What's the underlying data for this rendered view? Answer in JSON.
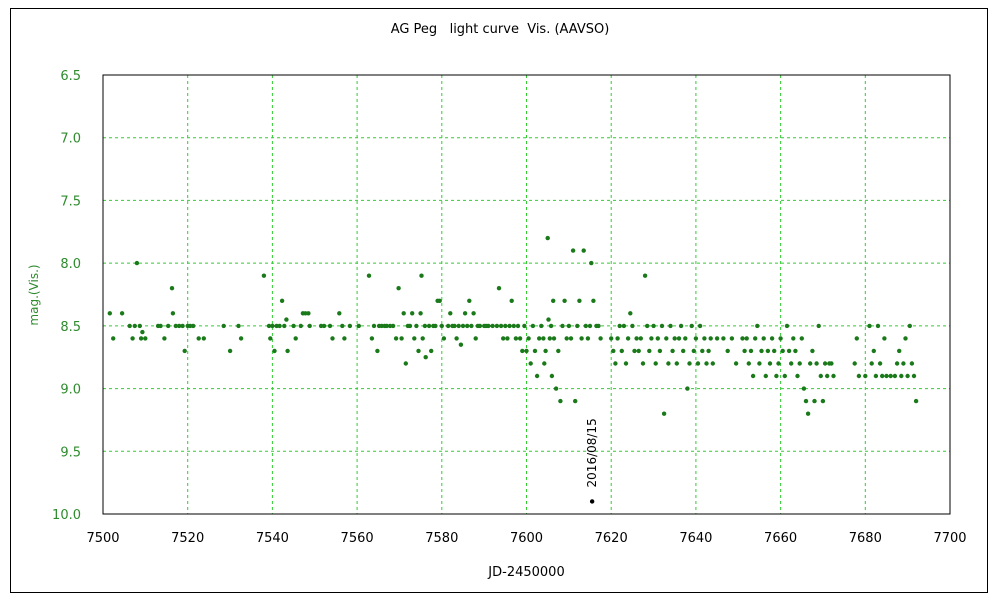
{
  "chart_data": {
    "type": "scatter",
    "title": "AG Peg   light curve  Vis. (AAVSO)",
    "xlabel": "JD-2450000",
    "ylabel": "mag.(Vis.)",
    "xlim": [
      7500,
      7700
    ],
    "ylim": [
      10.0,
      6.5
    ],
    "y_inverted": true,
    "xticks": [
      "7500",
      "7520",
      "7540",
      "7560",
      "7580",
      "7600",
      "7620",
      "7640",
      "7660",
      "7680",
      "7700"
    ],
    "yticks": [
      "6.5",
      "7.0",
      "7.5",
      "8.0",
      "8.5",
      "9.0",
      "9.5",
      "10.0"
    ],
    "grid": true,
    "grid_color": "#33cc33",
    "point_color": "#1a7a1a",
    "tick_color": "#2e8b2e",
    "annotation": {
      "text": "2016/08/15",
      "x": 7615.5,
      "y": 9.9,
      "color": "#000000"
    },
    "series": [
      {
        "points": [
          [
            7501.6,
            8.4
          ],
          [
            7502.4,
            8.6
          ],
          [
            7504.5,
            8.4
          ],
          [
            7506.3,
            8.5
          ],
          [
            7507.0,
            8.6
          ],
          [
            7507.5,
            8.5
          ],
          [
            7508.0,
            8.0
          ],
          [
            7508.7,
            8.5
          ],
          [
            7509.0,
            8.6
          ],
          [
            7509.3,
            8.55
          ],
          [
            7510.0,
            8.6
          ],
          [
            7513.0,
            8.5
          ],
          [
            7513.6,
            8.5
          ],
          [
            7514.5,
            8.6
          ],
          [
            7515.4,
            8.5
          ],
          [
            7516.3,
            8.2
          ],
          [
            7516.5,
            8.4
          ],
          [
            7517.2,
            8.5
          ],
          [
            7518.0,
            8.5
          ],
          [
            7518.8,
            8.5
          ],
          [
            7519.3,
            8.7
          ],
          [
            7520.0,
            8.5
          ],
          [
            7520.6,
            8.5
          ],
          [
            7521.3,
            8.5
          ],
          [
            7522.6,
            8.6
          ],
          [
            7523.8,
            8.6
          ],
          [
            7528.5,
            8.5
          ],
          [
            7530.0,
            8.7
          ],
          [
            7532.0,
            8.5
          ],
          [
            7532.6,
            8.6
          ],
          [
            7538.0,
            8.1
          ],
          [
            7539.2,
            8.5
          ],
          [
            7539.5,
            8.6
          ],
          [
            7540.0,
            8.5
          ],
          [
            7540.5,
            8.7
          ],
          [
            7541.0,
            8.5
          ],
          [
            7541.7,
            8.5
          ],
          [
            7542.3,
            8.3
          ],
          [
            7542.8,
            8.5
          ],
          [
            7543.3,
            8.45
          ],
          [
            7543.6,
            8.7
          ],
          [
            7545.0,
            8.5
          ],
          [
            7545.5,
            8.6
          ],
          [
            7546.7,
            8.5
          ],
          [
            7547.2,
            8.4
          ],
          [
            7547.8,
            8.4
          ],
          [
            7548.5,
            8.4
          ],
          [
            7548.8,
            8.5
          ],
          [
            7551.5,
            8.5
          ],
          [
            7552.2,
            8.5
          ],
          [
            7553.6,
            8.5
          ],
          [
            7554.2,
            8.6
          ],
          [
            7555.8,
            8.4
          ],
          [
            7556.5,
            8.5
          ],
          [
            7557.0,
            8.6
          ],
          [
            7558.3,
            8.5
          ],
          [
            7560.4,
            8.5
          ],
          [
            7562.8,
            8.1
          ],
          [
            7563.5,
            8.6
          ],
          [
            7564.0,
            8.5
          ],
          [
            7564.8,
            8.7
          ],
          [
            7565.2,
            8.5
          ],
          [
            7565.8,
            8.5
          ],
          [
            7566.5,
            8.5
          ],
          [
            7567.0,
            8.5
          ],
          [
            7567.8,
            8.5
          ],
          [
            7568.5,
            8.5
          ],
          [
            7569.2,
            8.6
          ],
          [
            7569.8,
            8.2
          ],
          [
            7570.5,
            8.6
          ],
          [
            7571.0,
            8.4
          ],
          [
            7571.5,
            8.8
          ],
          [
            7572.0,
            8.5
          ],
          [
            7572.5,
            8.5
          ],
          [
            7573.0,
            8.4
          ],
          [
            7573.5,
            8.6
          ],
          [
            7574.0,
            8.5
          ],
          [
            7574.5,
            8.7
          ],
          [
            7575.0,
            8.4
          ],
          [
            7575.2,
            8.1
          ],
          [
            7575.5,
            8.6
          ],
          [
            7576.0,
            8.5
          ],
          [
            7576.2,
            8.75
          ],
          [
            7577.0,
            8.5
          ],
          [
            7577.5,
            8.7
          ],
          [
            7578.0,
            8.5
          ],
          [
            7578.5,
            8.5
          ],
          [
            7579.0,
            8.3
          ],
          [
            7579.5,
            8.3
          ],
          [
            7580.0,
            8.5
          ],
          [
            7580.5,
            8.6
          ],
          [
            7581.5,
            8.5
          ],
          [
            7582.0,
            8.4
          ],
          [
            7582.5,
            8.5
          ],
          [
            7583.0,
            8.5
          ],
          [
            7583.5,
            8.6
          ],
          [
            7584.0,
            8.5
          ],
          [
            7584.5,
            8.65
          ],
          [
            7585.0,
            8.5
          ],
          [
            7585.5,
            8.4
          ],
          [
            7586.0,
            8.5
          ],
          [
            7586.5,
            8.3
          ],
          [
            7587.0,
            8.5
          ],
          [
            7587.5,
            8.4
          ],
          [
            7588.0,
            8.6
          ],
          [
            7588.5,
            8.5
          ],
          [
            7589.0,
            8.5
          ],
          [
            7590.0,
            8.5
          ],
          [
            7590.5,
            8.5
          ],
          [
            7591.0,
            8.5
          ],
          [
            7592.0,
            8.5
          ],
          [
            7593.0,
            8.5
          ],
          [
            7593.5,
            8.2
          ],
          [
            7594.0,
            8.5
          ],
          [
            7594.5,
            8.6
          ],
          [
            7595.0,
            8.5
          ],
          [
            7595.5,
            8.6
          ],
          [
            7596.0,
            8.5
          ],
          [
            7596.5,
            8.3
          ],
          [
            7597.0,
            8.5
          ],
          [
            7597.5,
            8.6
          ],
          [
            7598.0,
            8.5
          ],
          [
            7598.5,
            8.6
          ],
          [
            7599.0,
            8.7
          ],
          [
            7599.5,
            8.5
          ],
          [
            7600.0,
            8.7
          ],
          [
            7600.5,
            8.6
          ],
          [
            7601.0,
            8.8
          ],
          [
            7601.5,
            8.5
          ],
          [
            7602.0,
            8.7
          ],
          [
            7602.5,
            8.9
          ],
          [
            7603.0,
            8.6
          ],
          [
            7603.5,
            8.5
          ],
          [
            7604.0,
            8.6
          ],
          [
            7604.2,
            8.8
          ],
          [
            7604.5,
            8.7
          ],
          [
            7605.0,
            7.8
          ],
          [
            7605.2,
            8.45
          ],
          [
            7605.5,
            8.6
          ],
          [
            7605.8,
            8.5
          ],
          [
            7606.0,
            8.9
          ],
          [
            7606.3,
            8.3
          ],
          [
            7606.5,
            8.6
          ],
          [
            7607.0,
            9.0
          ],
          [
            7607.5,
            8.7
          ],
          [
            7608.0,
            9.1
          ],
          [
            7608.5,
            8.5
          ],
          [
            7609.0,
            8.3
          ],
          [
            7609.5,
            8.6
          ],
          [
            7610.0,
            8.5
          ],
          [
            7610.5,
            8.6
          ],
          [
            7611.0,
            7.9
          ],
          [
            7611.5,
            9.1
          ],
          [
            7612.0,
            8.5
          ],
          [
            7612.5,
            8.3
          ],
          [
            7613.0,
            8.6
          ],
          [
            7613.5,
            7.9
          ],
          [
            7614.0,
            8.5
          ],
          [
            7614.5,
            8.6
          ],
          [
            7615.0,
            8.5
          ],
          [
            7615.3,
            8.0
          ],
          [
            7615.8,
            8.3
          ],
          [
            7616.5,
            8.5
          ],
          [
            7617.0,
            8.5
          ],
          [
            7617.5,
            8.6
          ],
          [
            7620.0,
            8.6
          ],
          [
            7620.5,
            8.7
          ],
          [
            7621.0,
            8.8
          ],
          [
            7621.5,
            8.6
          ],
          [
            7622.0,
            8.5
          ],
          [
            7622.5,
            8.7
          ],
          [
            7623.0,
            8.5
          ],
          [
            7623.5,
            8.8
          ],
          [
            7624.0,
            8.6
          ],
          [
            7624.5,
            8.4
          ],
          [
            7625.0,
            8.5
          ],
          [
            7625.5,
            8.7
          ],
          [
            7626.0,
            8.6
          ],
          [
            7626.5,
            8.7
          ],
          [
            7627.0,
            8.6
          ],
          [
            7627.5,
            8.8
          ],
          [
            7628.0,
            8.1
          ],
          [
            7628.5,
            8.5
          ],
          [
            7629.0,
            8.7
          ],
          [
            7629.5,
            8.6
          ],
          [
            7630.0,
            8.5
          ],
          [
            7630.5,
            8.8
          ],
          [
            7631.0,
            8.6
          ],
          [
            7631.5,
            8.7
          ],
          [
            7632.0,
            8.5
          ],
          [
            7632.5,
            9.2
          ],
          [
            7633.0,
            8.6
          ],
          [
            7633.5,
            8.8
          ],
          [
            7634.0,
            8.5
          ],
          [
            7634.5,
            8.7
          ],
          [
            7635.0,
            8.6
          ],
          [
            7635.5,
            8.8
          ],
          [
            7636.0,
            8.6
          ],
          [
            7636.5,
            8.5
          ],
          [
            7637.0,
            8.7
          ],
          [
            7637.5,
            8.6
          ],
          [
            7638.0,
            9.0
          ],
          [
            7638.5,
            8.8
          ],
          [
            7639.0,
            8.5
          ],
          [
            7639.5,
            8.7
          ],
          [
            7640.0,
            8.6
          ],
          [
            7640.5,
            8.8
          ],
          [
            7641.0,
            8.5
          ],
          [
            7641.5,
            8.7
          ],
          [
            7642.0,
            8.6
          ],
          [
            7642.5,
            8.8
          ],
          [
            7643.0,
            8.7
          ],
          [
            7643.5,
            8.6
          ],
          [
            7644.0,
            8.8
          ],
          [
            7645.0,
            8.6
          ],
          [
            7646.5,
            8.6
          ],
          [
            7647.5,
            8.7
          ],
          [
            7648.5,
            8.6
          ],
          [
            7649.5,
            8.8
          ],
          [
            7651.0,
            8.6
          ],
          [
            7651.5,
            8.7
          ],
          [
            7652.0,
            8.6
          ],
          [
            7652.5,
            8.8
          ],
          [
            7653.0,
            8.7
          ],
          [
            7653.5,
            8.9
          ],
          [
            7654.0,
            8.6
          ],
          [
            7654.5,
            8.5
          ],
          [
            7655.0,
            8.8
          ],
          [
            7655.5,
            8.7
          ],
          [
            7656.0,
            8.6
          ],
          [
            7656.5,
            8.9
          ],
          [
            7657.0,
            8.7
          ],
          [
            7657.5,
            8.8
          ],
          [
            7658.0,
            8.6
          ],
          [
            7658.5,
            8.7
          ],
          [
            7659.0,
            8.9
          ],
          [
            7659.5,
            8.8
          ],
          [
            7660.0,
            8.6
          ],
          [
            7660.5,
            8.7
          ],
          [
            7661.0,
            8.9
          ],
          [
            7661.5,
            8.5
          ],
          [
            7662.0,
            8.7
          ],
          [
            7662.5,
            8.8
          ],
          [
            7663.0,
            8.6
          ],
          [
            7663.5,
            8.7
          ],
          [
            7664.0,
            8.9
          ],
          [
            7664.5,
            8.8
          ],
          [
            7665.0,
            8.6
          ],
          [
            7665.5,
            9.0
          ],
          [
            7666.0,
            9.1
          ],
          [
            7666.5,
            9.2
          ],
          [
            7667.0,
            8.8
          ],
          [
            7667.5,
            8.7
          ],
          [
            7668.0,
            9.1
          ],
          [
            7668.5,
            8.8
          ],
          [
            7669.0,
            8.5
          ],
          [
            7669.5,
            8.9
          ],
          [
            7670.0,
            9.1
          ],
          [
            7670.5,
            8.8
          ],
          [
            7671.0,
            8.9
          ],
          [
            7671.5,
            8.8
          ],
          [
            7672.0,
            8.8
          ],
          [
            7672.5,
            8.9
          ],
          [
            7677.5,
            8.8
          ],
          [
            7678.0,
            8.6
          ],
          [
            7678.5,
            8.9
          ],
          [
            7680.0,
            8.9
          ],
          [
            7681.0,
            8.5
          ],
          [
            7681.5,
            8.8
          ],
          [
            7682.0,
            8.7
          ],
          [
            7682.5,
            8.9
          ],
          [
            7683.0,
            8.5
          ],
          [
            7683.5,
            8.8
          ],
          [
            7684.0,
            8.9
          ],
          [
            7684.5,
            8.6
          ],
          [
            7685.0,
            8.9
          ],
          [
            7686.0,
            8.9
          ],
          [
            7687.0,
            8.9
          ],
          [
            7687.5,
            8.8
          ],
          [
            7688.0,
            8.7
          ],
          [
            7688.5,
            8.9
          ],
          [
            7689.0,
            8.8
          ],
          [
            7689.5,
            8.6
          ],
          [
            7690.0,
            8.9
          ],
          [
            7690.5,
            8.5
          ],
          [
            7691.0,
            8.8
          ],
          [
            7691.5,
            8.9
          ],
          [
            7692.0,
            9.1
          ]
        ]
      }
    ]
  }
}
